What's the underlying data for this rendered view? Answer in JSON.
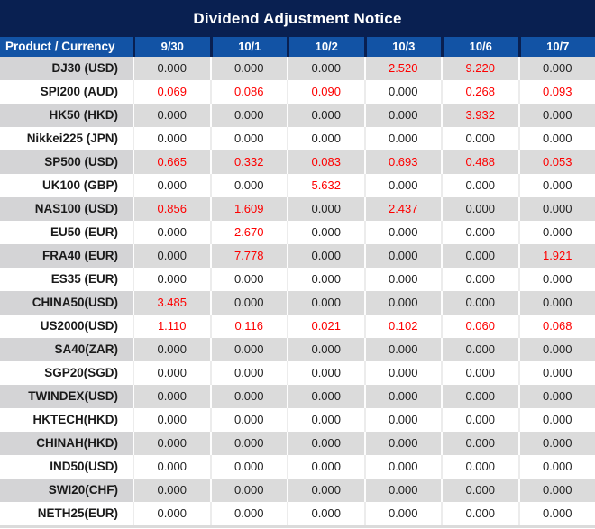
{
  "title": "Dividend Adjustment Notice",
  "colors": {
    "title_bg": "#092051",
    "header_bg": "#1253a5",
    "header_text": "#ffffff",
    "row_gray": "#dbdbdb",
    "product_gray": "#d4d4d6",
    "row_white": "#ffffff",
    "product_text": "#1a1a1a",
    "value_black": "#1f1f1f",
    "value_red": "#fe0000"
  },
  "table": {
    "product_header": "Product / Currency",
    "date_headers": [
      "9/30",
      "10/1",
      "10/2",
      "10/3",
      "10/6",
      "10/7"
    ],
    "zero_value": "0.000",
    "rows": [
      {
        "product": "DJ30 (USD)",
        "values": [
          "0.000",
          "0.000",
          "0.000",
          "2.520",
          "9.220",
          "0.000"
        ]
      },
      {
        "product": "SPI200 (AUD)",
        "values": [
          "0.069",
          "0.086",
          "0.090",
          "0.000",
          "0.268",
          "0.093"
        ]
      },
      {
        "product": "HK50 (HKD)",
        "values": [
          "0.000",
          "0.000",
          "0.000",
          "0.000",
          "3.932",
          "0.000"
        ]
      },
      {
        "product": "Nikkei225 (JPN)",
        "values": [
          "0.000",
          "0.000",
          "0.000",
          "0.000",
          "0.000",
          "0.000"
        ]
      },
      {
        "product": "SP500 (USD)",
        "values": [
          "0.665",
          "0.332",
          "0.083",
          "0.693",
          "0.488",
          "0.053"
        ]
      },
      {
        "product": "UK100 (GBP)",
        "values": [
          "0.000",
          "0.000",
          "5.632",
          "0.000",
          "0.000",
          "0.000"
        ]
      },
      {
        "product": "NAS100 (USD)",
        "values": [
          "0.856",
          "1.609",
          "0.000",
          "2.437",
          "0.000",
          "0.000"
        ]
      },
      {
        "product": "EU50 (EUR)",
        "values": [
          "0.000",
          "2.670",
          "0.000",
          "0.000",
          "0.000",
          "0.000"
        ]
      },
      {
        "product": "FRA40 (EUR)",
        "values": [
          "0.000",
          "7.778",
          "0.000",
          "0.000",
          "0.000",
          "1.921"
        ]
      },
      {
        "product": "ES35 (EUR)",
        "values": [
          "0.000",
          "0.000",
          "0.000",
          "0.000",
          "0.000",
          "0.000"
        ]
      },
      {
        "product": "CHINA50(USD)",
        "values": [
          "3.485",
          "0.000",
          "0.000",
          "0.000",
          "0.000",
          "0.000"
        ]
      },
      {
        "product": "US2000(USD)",
        "values": [
          "1.110",
          "0.116",
          "0.021",
          "0.102",
          "0.060",
          "0.068"
        ]
      },
      {
        "product": "SA40(ZAR)",
        "values": [
          "0.000",
          "0.000",
          "0.000",
          "0.000",
          "0.000",
          "0.000"
        ]
      },
      {
        "product": "SGP20(SGD)",
        "values": [
          "0.000",
          "0.000",
          "0.000",
          "0.000",
          "0.000",
          "0.000"
        ]
      },
      {
        "product": "TWINDEX(USD)",
        "values": [
          "0.000",
          "0.000",
          "0.000",
          "0.000",
          "0.000",
          "0.000"
        ]
      },
      {
        "product": "HKTECH(HKD)",
        "values": [
          "0.000",
          "0.000",
          "0.000",
          "0.000",
          "0.000",
          "0.000"
        ]
      },
      {
        "product": "CHINAH(HKD)",
        "values": [
          "0.000",
          "0.000",
          "0.000",
          "0.000",
          "0.000",
          "0.000"
        ]
      },
      {
        "product": "IND50(USD)",
        "values": [
          "0.000",
          "0.000",
          "0.000",
          "0.000",
          "0.000",
          "0.000"
        ]
      },
      {
        "product": "SWI20(CHF)",
        "values": [
          "0.000",
          "0.000",
          "0.000",
          "0.000",
          "0.000",
          "0.000"
        ]
      },
      {
        "product": "NETH25(EUR)",
        "values": [
          "0.000",
          "0.000",
          "0.000",
          "0.000",
          "0.000",
          "0.000"
        ]
      }
    ]
  }
}
